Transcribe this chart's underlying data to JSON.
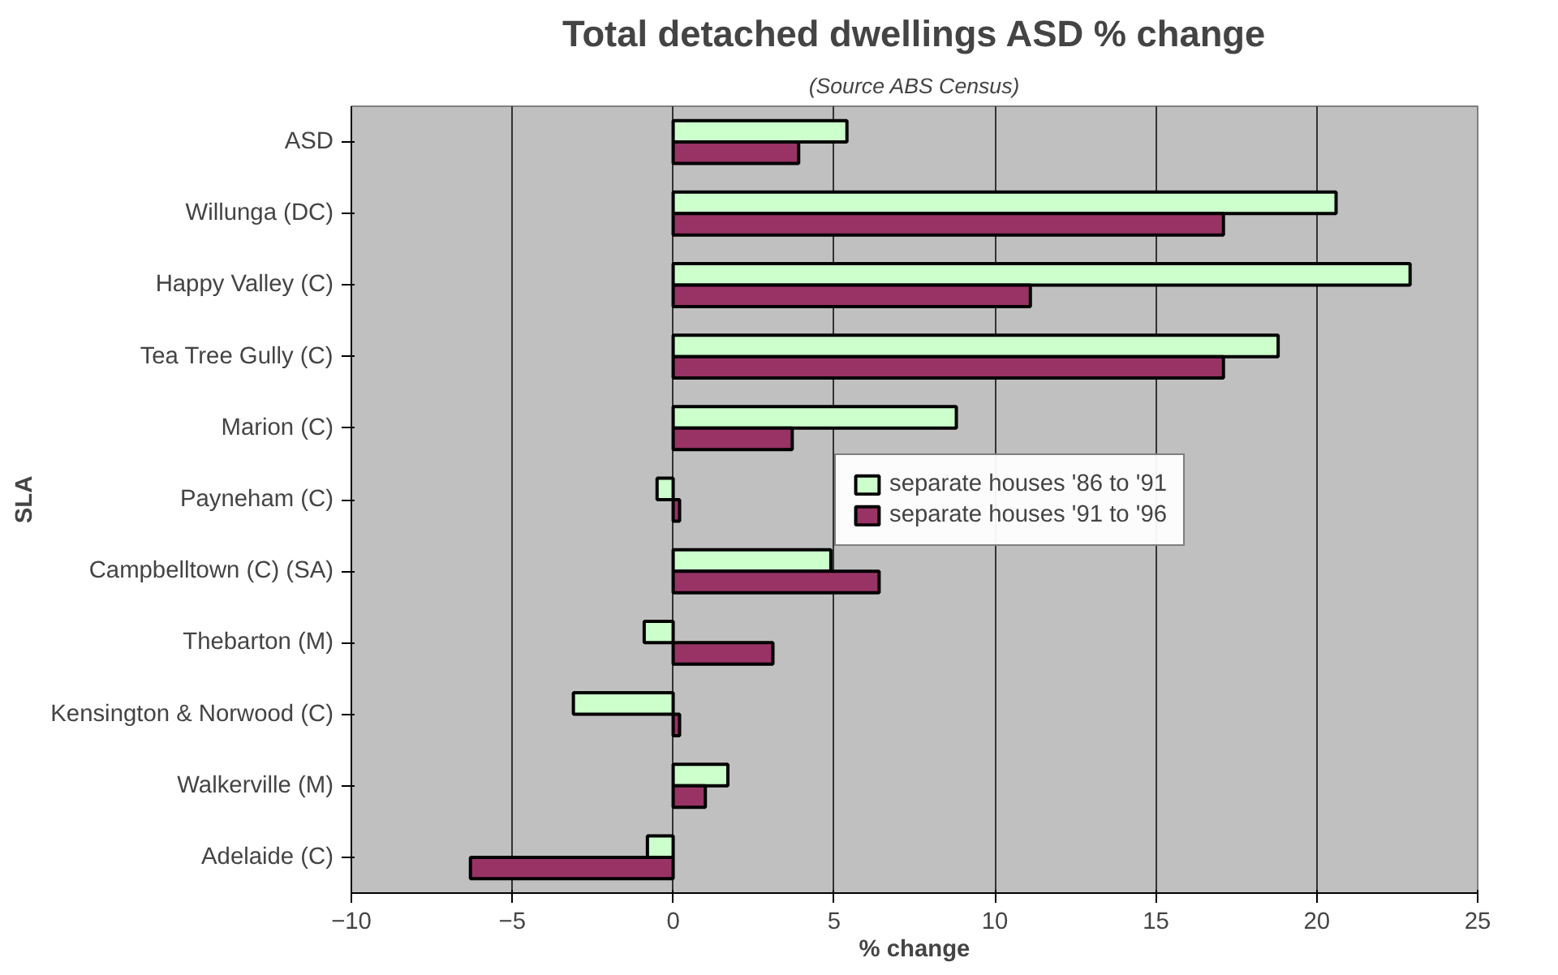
{
  "chart_data": {
    "type": "bar",
    "orientation": "horizontal",
    "title": "Total detached dwellings ASD % change",
    "subtitle": "(Source ABS Census)",
    "xlabel": "% change",
    "ylabel": "SLA",
    "categories": [
      "ASD",
      "Willunga (DC)",
      "Happy Valley (C)",
      "Tea Tree Gully (C)",
      "Marion (C)",
      "Payneham (C)",
      "Campbelltown (C) (SA)",
      "Thebarton (M)",
      "Kensington & Norwood (C)",
      "Walkerville (M)",
      "Adelaide (C)"
    ],
    "series": [
      {
        "name": "separate houses '86 to '91",
        "color": "#ccffcc",
        "values": [
          5.4,
          20.6,
          22.9,
          18.8,
          8.8,
          -0.5,
          4.9,
          -0.9,
          -3.1,
          1.7,
          -0.8
        ]
      },
      {
        "name": "separate houses '91 to '96",
        "color": "#993366",
        "values": [
          3.9,
          17.1,
          11.1,
          17.1,
          3.7,
          0.2,
          6.4,
          3.1,
          0.2,
          1.0,
          -6.3
        ]
      }
    ],
    "xlim": [
      -10,
      25
    ],
    "xticks": [
      -10,
      -5,
      0,
      5,
      10,
      15,
      20,
      25
    ],
    "grid": "x",
    "legend": "right"
  }
}
